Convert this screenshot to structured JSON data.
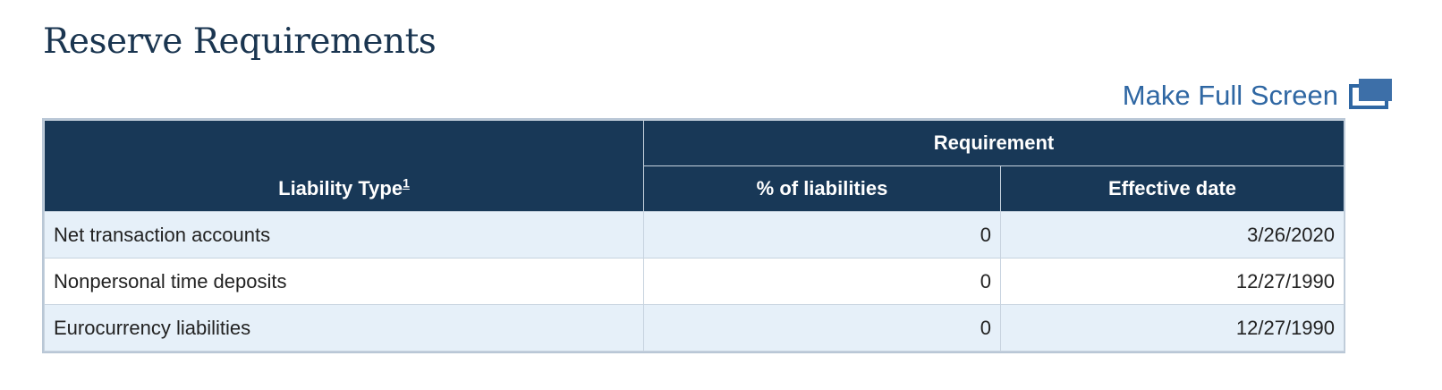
{
  "page": {
    "title": "Reserve Requirements"
  },
  "fullscreen": {
    "label": "Make Full Screen",
    "icon": "fullscreen-icon"
  },
  "table": {
    "headers": {
      "liability_type": "Liability Type",
      "liability_type_footnote": "1",
      "requirement": "Requirement",
      "pct_of_liabilities": "% of liabilities",
      "effective_date": "Effective date"
    },
    "rows": [
      {
        "type": "Net transaction accounts",
        "pct": "0",
        "date": "3/26/2020"
      },
      {
        "type": "Nonpersonal time deposits",
        "pct": "0",
        "date": "12/27/1990"
      },
      {
        "type": "Eurocurrency liabilities",
        "pct": "0",
        "date": "12/27/1990"
      }
    ]
  },
  "colors": {
    "header_bg": "#183857",
    "title": "#1a3550",
    "link": "#2f67a3",
    "row_stripe": "#e6f0f9"
  }
}
